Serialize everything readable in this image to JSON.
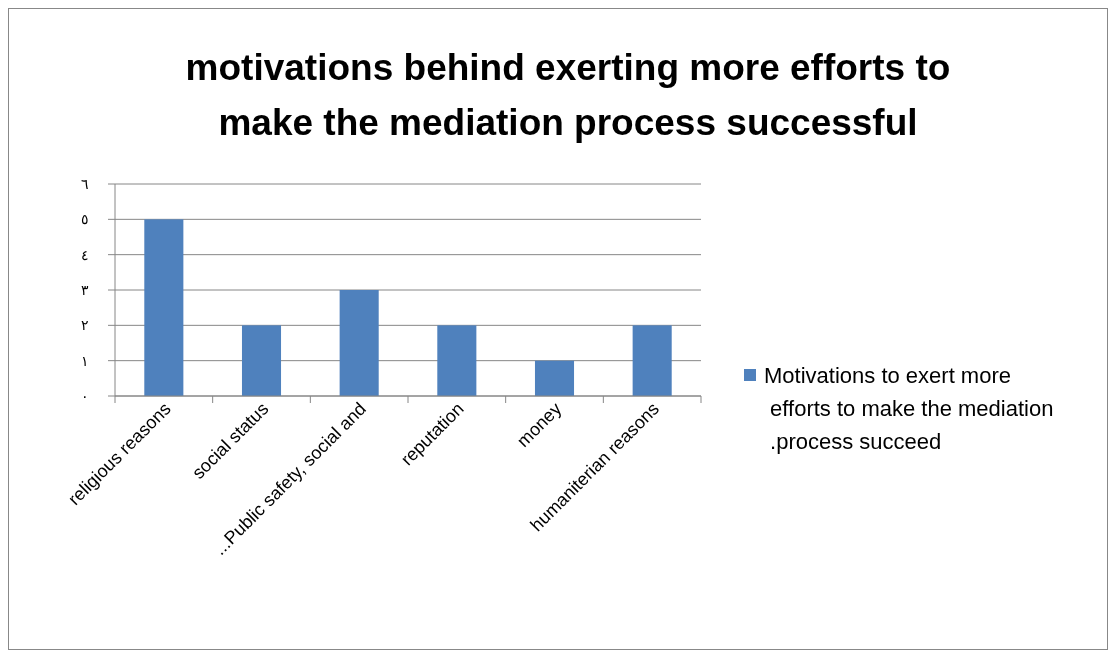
{
  "chart_data": {
    "type": "bar",
    "title": "motivations behind exerting more efforts to make the mediation process successful",
    "categories": [
      "religious reasons",
      "social status",
      "...Public safety, social and",
      "reputation",
      "money",
      "humaniterian reasons"
    ],
    "series": [
      {
        "name": "Motivations to exert more efforts to make the mediation .process succeed",
        "color": "#4f81bd",
        "values": [
          5,
          2,
          3,
          2,
          1,
          2
        ]
      }
    ],
    "ylim": [
      0,
      6
    ],
    "yticks": [
      {
        "value": 0,
        "label": "٠"
      },
      {
        "value": 1,
        "label": "١"
      },
      {
        "value": 2,
        "label": "٢"
      },
      {
        "value": 3,
        "label": "٣"
      },
      {
        "value": 4,
        "label": "٤"
      },
      {
        "value": 5,
        "label": "٥"
      },
      {
        "value": 6,
        "label": "٦"
      }
    ],
    "grid": "y",
    "legend": "right"
  }
}
